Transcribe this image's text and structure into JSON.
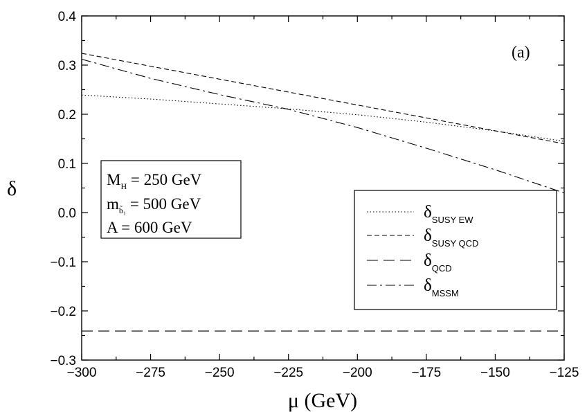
{
  "chart_data": {
    "type": "line",
    "title": "",
    "xlabel": "μ (GeV)",
    "ylabel": "δ",
    "xlim": [
      -300,
      -125
    ],
    "ylim": [
      -0.3,
      0.4
    ],
    "x_ticks": [
      -300,
      -275,
      -250,
      -225,
      -200,
      -175,
      -150,
      -125
    ],
    "x_tick_labels": [
      "−300",
      "−275",
      "−250",
      "−225",
      "−200",
      "−175",
      "−150",
      "−125"
    ],
    "y_ticks": [
      -0.3,
      -0.2,
      -0.1,
      0.0,
      0.1,
      0.2,
      0.3,
      0.4
    ],
    "y_tick_labels": [
      "−0.3",
      "−0.2",
      "−0.1",
      "0.0",
      "0.1",
      "0.2",
      "0.3",
      "0.4"
    ],
    "grid": false,
    "panel_label": "(a)",
    "legend_position": "bottom-right",
    "series": [
      {
        "name": "δ_SUSY EW",
        "main": "δ",
        "sub": "SUSY EW",
        "style": "dotted",
        "x": [
          -300,
          -275,
          -250,
          -225,
          -200,
          -175,
          -150,
          -125
        ],
        "y": [
          0.239,
          0.231,
          0.221,
          0.211,
          0.199,
          0.184,
          0.166,
          0.145
        ]
      },
      {
        "name": "δ_SUSY QCD",
        "main": "δ",
        "sub": "SUSY QCD",
        "style": "dashed",
        "x": [
          -300,
          -125
        ],
        "y": [
          0.324,
          0.14
        ]
      },
      {
        "name": "δ_QCD",
        "main": "δ",
        "sub": "QCD",
        "style": "long-dashed",
        "x": [
          -300,
          -125
        ],
        "y": [
          -0.241,
          -0.241
        ]
      },
      {
        "name": "δ_MSSM",
        "main": "δ",
        "sub": "MSSM",
        "style": "dash-dot",
        "x": [
          -300,
          -275,
          -250,
          -225,
          -200,
          -175,
          -150,
          -125
        ],
        "y": [
          0.312,
          0.273,
          0.24,
          0.21,
          0.173,
          0.131,
          0.087,
          0.04
        ]
      }
    ],
    "parameters": [
      {
        "main": "M",
        "sub": "H",
        "value": " = 250 GeV"
      },
      {
        "main": "m",
        "sub": "b̃₁",
        "value": " = 500 GeV"
      },
      {
        "main": "A",
        "sub": "",
        "value": " = 600 GeV"
      }
    ]
  }
}
